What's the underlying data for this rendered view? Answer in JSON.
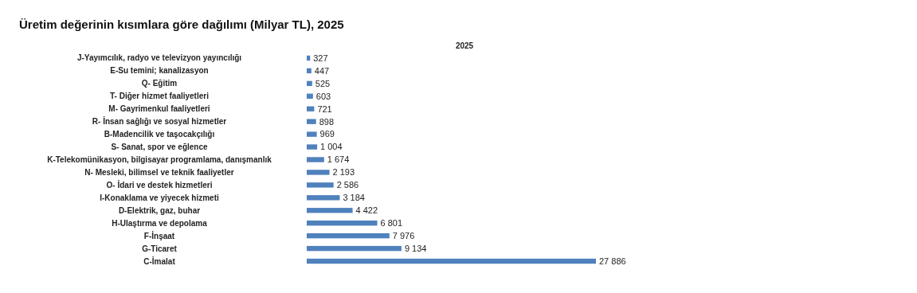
{
  "chart_data": {
    "type": "bar",
    "orientation": "horizontal",
    "title": "Üretim değerinin kısımlara göre dağılımı (Milyar TL), 2025",
    "legend": "top",
    "categories": [
      "J-Yayımcılık, radyo ve televizyon yayıncılığı",
      "E-Su temini; kanalizasyon",
      "Q- Eğitim",
      "T- Diğer hizmet faaliyetleri",
      "M- Gayrimenkul faaliyetleri",
      "R- İnsan sağlığı ve sosyal hizmetler",
      "B-Madencilik ve taşocakçılığı",
      "S- Sanat, spor ve eğlence",
      "K-Telekomünikasyon, bilgisayar programlama, danışmanlık",
      "N- Mesleki, bilimsel ve teknik faaliyetler",
      "O- İdari ve destek hizmetleri",
      "I-Konaklama ve yiyecek hizmeti",
      "D-Elektrik, gaz, buhar",
      "H-Ulaştırma ve depolama",
      "F-İnşaat",
      "G-Ticaret",
      "C-İmalat"
    ],
    "series": [
      {
        "name": "2025",
        "color": "#4f81bd",
        "values": [
          327,
          447,
          525,
          603,
          721,
          898,
          969,
          1004,
          1674,
          2193,
          2586,
          3184,
          4422,
          6801,
          7976,
          9134,
          27886
        ],
        "value_labels": [
          "327",
          "447",
          "525",
          "603",
          "721",
          "898",
          "969",
          "1 004",
          "1 674",
          "2 193",
          "2 586",
          "3 184",
          "4 422",
          "6 801",
          "7 976",
          "9 134",
          "27 886"
        ]
      }
    ]
  }
}
